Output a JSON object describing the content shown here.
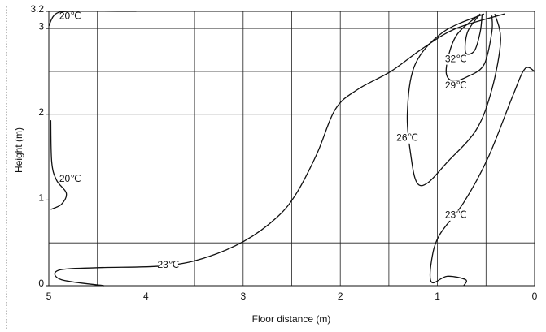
{
  "chart_data": {
    "type": "contour",
    "xlabel": "Floor distance (m)",
    "ylabel": "Height (m)",
    "xlim": [
      5,
      0
    ],
    "ylim": [
      0,
      3.2
    ],
    "xticks": [
      5,
      4,
      3,
      2,
      1,
      0
    ],
    "minor_xticks": [
      4.5,
      3.5,
      2.5,
      1.5,
      0.5
    ],
    "yticks": [
      0,
      1,
      2,
      3,
      3.2
    ],
    "minor_yticks": [
      0.5,
      1.5,
      2.5
    ],
    "grid": true,
    "color": "#111111",
    "series": [
      {
        "x": [
          5.0,
          4.93,
          4.75,
          4.1
        ],
        "y": [
          3.03,
          3.17,
          3.2,
          3.2
        ]
      },
      {
        "x": [
          4.98,
          4.97,
          4.92,
          4.82,
          4.87,
          4.98
        ],
        "y": [
          1.93,
          1.44,
          1.23,
          1.08,
          0.95,
          0.89
        ]
      },
      {
        "x": [
          4.43,
          4.87,
          4.9,
          4.5,
          3.83,
          3.41,
          2.99,
          2.65,
          2.45,
          2.24,
          2.05,
          1.82,
          1.48,
          1.15,
          0.81,
          0.31
        ],
        "y": [
          0,
          0.07,
          0.18,
          0.21,
          0.23,
          0.32,
          0.52,
          0.8,
          1.08,
          1.54,
          2.06,
          2.29,
          2.5,
          2.77,
          3.0,
          3.17
        ]
      },
      {
        "x": [
          0.52,
          0.94,
          1.23,
          1.31,
          1.27,
          1.21,
          1.1,
          0.9,
          0.6,
          0.44,
          0.35,
          0.41
        ],
        "y": [
          3.17,
          2.96,
          2.58,
          2.01,
          1.49,
          1.2,
          1.2,
          1.44,
          1.82,
          2.29,
          2.86,
          3.17
        ]
      },
      {
        "x": [
          0.56,
          0.81,
          0.91,
          0.85,
          0.69,
          0.52,
          0.44,
          0.44
        ],
        "y": [
          3.17,
          2.91,
          2.53,
          2.39,
          2.44,
          2.58,
          2.96,
          3.15
        ]
      },
      {
        "x": [
          0.56,
          0.69,
          0.71,
          0.62,
          0.56,
          0.54
        ],
        "y": [
          3.17,
          2.96,
          2.72,
          2.74,
          2.96,
          3.17
        ]
      },
      {
        "x": [
          0,
          0.1,
          0.23,
          0.48,
          0.73,
          0.98,
          1.06,
          1.06,
          0.9,
          0.71,
          0.73
        ],
        "y": [
          2.5,
          2.53,
          2.2,
          1.49,
          0.97,
          0.59,
          0.3,
          0.04,
          0.11,
          0.07,
          0
        ]
      }
    ],
    "annotations": [
      {
        "text": "20℃",
        "x": 4.78,
        "y": 3.14,
        "small": true
      },
      {
        "text": "20℃",
        "x": 4.78,
        "y": 1.24
      },
      {
        "text": "23℃",
        "x": 3.77,
        "y": 0.24
      },
      {
        "text": "26℃",
        "x": 1.31,
        "y": 1.72
      },
      {
        "text": "29℃",
        "x": 0.81,
        "y": 2.33
      },
      {
        "text": "32℃",
        "x": 0.81,
        "y": 2.64
      },
      {
        "text": "23℃",
        "x": 0.81,
        "y": 0.82
      }
    ]
  }
}
